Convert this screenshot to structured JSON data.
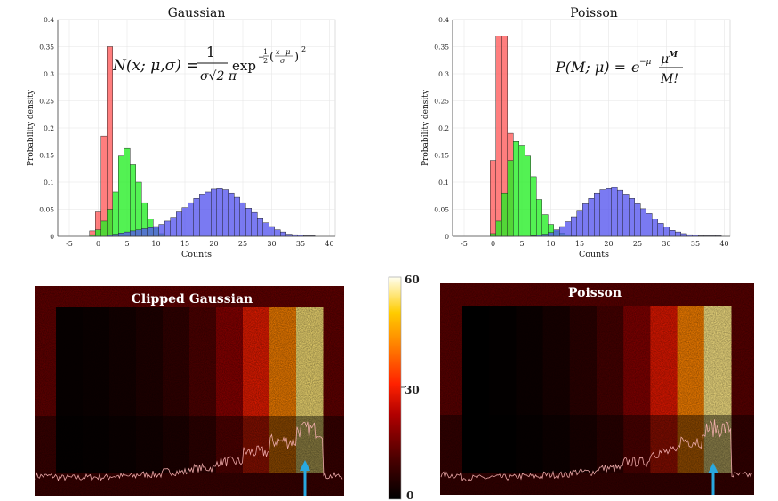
{
  "chart_data": [
    {
      "type": "bar",
      "title": "Gaussian",
      "xlabel": "Counts",
      "ylabel": "Probability density",
      "xlim": [
        -7,
        41
      ],
      "ylim": [
        0,
        0.4
      ],
      "xticks": [
        "-5",
        "0",
        "5",
        "10",
        "15",
        "20",
        "25",
        "30",
        "35",
        "40"
      ],
      "yticks": [
        "0",
        "0.05",
        "0.1",
        "0.15",
        "0.2",
        "0.25",
        "0.3",
        "0.35",
        "0.4"
      ],
      "grid": true,
      "bin_width": 1,
      "formula": "N(x; μ,σ) = (1 / σ√(2π)) exp(−½((x−μ)/σ)²)",
      "series": [
        {
          "color": "#ff5a5a",
          "x": [
            -2,
            -1,
            0,
            1,
            2
          ],
          "values": [
            0.0,
            0.01,
            0.045,
            0.185,
            0.35
          ]
        },
        {
          "color": "#22ee22",
          "x": [
            -1,
            0,
            1,
            2,
            3,
            4,
            5,
            6,
            7,
            8,
            9,
            10,
            11
          ],
          "values": [
            0.003,
            0.012,
            0.028,
            0.05,
            0.082,
            0.148,
            0.162,
            0.132,
            0.1,
            0.062,
            0.032,
            0.015,
            0.005
          ]
        },
        {
          "color": "#5555ee",
          "x": [
            2,
            3,
            4,
            5,
            6,
            7,
            8,
            9,
            10,
            11,
            12,
            13,
            14,
            15,
            16,
            17,
            18,
            19,
            20,
            21,
            22,
            23,
            24,
            25,
            26,
            27,
            28,
            29,
            30,
            31,
            32,
            33,
            34,
            35,
            36,
            37
          ],
          "values": [
            0.002,
            0.004,
            0.006,
            0.008,
            0.01,
            0.012,
            0.014,
            0.016,
            0.018,
            0.022,
            0.028,
            0.035,
            0.045,
            0.053,
            0.062,
            0.07,
            0.078,
            0.082,
            0.087,
            0.088,
            0.086,
            0.08,
            0.072,
            0.062,
            0.052,
            0.044,
            0.034,
            0.025,
            0.018,
            0.012,
            0.008,
            0.004,
            0.003,
            0.002,
            0.001,
            0.001
          ]
        }
      ]
    },
    {
      "type": "bar",
      "title": "Poisson",
      "xlabel": "Counts",
      "ylabel": "Probability density",
      "xlim": [
        -7,
        41
      ],
      "ylim": [
        0,
        0.4
      ],
      "xticks": [
        "-5",
        "0",
        "5",
        "10",
        "15",
        "20",
        "25",
        "30",
        "35",
        "40"
      ],
      "yticks": [
        "0",
        "0.05",
        "0.1",
        "0.15",
        "0.2",
        "0.25",
        "0.3",
        "0.35",
        "0.4"
      ],
      "grid": true,
      "bin_width": 1,
      "formula": "P(M; μ) = e^−μ μ^M / M!",
      "series": [
        {
          "color": "#ff5a5a",
          "x": [
            0,
            1,
            2,
            3
          ],
          "values": [
            0.14,
            0.37,
            0.37,
            0.19
          ]
        },
        {
          "color": "#22ee22",
          "x": [
            0,
            1,
            2,
            3,
            4,
            5,
            6,
            7,
            8,
            9,
            10,
            11,
            12,
            13,
            14
          ],
          "values": [
            0.005,
            0.028,
            0.08,
            0.14,
            0.175,
            0.168,
            0.148,
            0.11,
            0.068,
            0.04,
            0.022,
            0.01,
            0.006,
            0.003,
            0.001
          ]
        },
        {
          "color": "#5555ee",
          "x": [
            7,
            8,
            9,
            10,
            11,
            12,
            13,
            14,
            15,
            16,
            17,
            18,
            19,
            20,
            21,
            22,
            23,
            24,
            25,
            26,
            27,
            28,
            29,
            30,
            31,
            32,
            33,
            34,
            35,
            36,
            37,
            38,
            39
          ],
          "values": [
            0.001,
            0.002,
            0.004,
            0.007,
            0.012,
            0.018,
            0.027,
            0.036,
            0.048,
            0.06,
            0.07,
            0.08,
            0.086,
            0.088,
            0.09,
            0.085,
            0.078,
            0.07,
            0.06,
            0.051,
            0.042,
            0.032,
            0.024,
            0.017,
            0.011,
            0.008,
            0.005,
            0.003,
            0.002,
            0.001,
            0.001,
            0.001,
            0.001
          ]
        }
      ]
    },
    {
      "type": "heatmap",
      "title": "Clipped Gaussian",
      "columns": 10,
      "column_levels": [
        0.02,
        0.03,
        0.05,
        0.08,
        0.13,
        0.2,
        0.32,
        0.5,
        0.7,
        0.92
      ],
      "background_level": 0.24,
      "overlay": "intensity profile trace",
      "arrow_color": "#29a8e0",
      "arrow_column": 10
    },
    {
      "type": "heatmap",
      "title": "Poisson",
      "columns": 10,
      "column_levels": [
        0.0,
        0.01,
        0.03,
        0.06,
        0.11,
        0.18,
        0.3,
        0.48,
        0.7,
        0.93
      ],
      "background_level": 0.22,
      "overlay": "intensity profile trace",
      "arrow_color": "#29a8e0",
      "arrow_column": 10
    }
  ],
  "colorbar": {
    "type": "colorbar",
    "range": [
      0,
      60
    ],
    "ticks": [
      "60",
      "30",
      "0"
    ],
    "colormap": [
      "#000000",
      "#5a0000",
      "#c80000",
      "#ff3000",
      "#ff8c00",
      "#ffd000",
      "#fffff0"
    ]
  }
}
